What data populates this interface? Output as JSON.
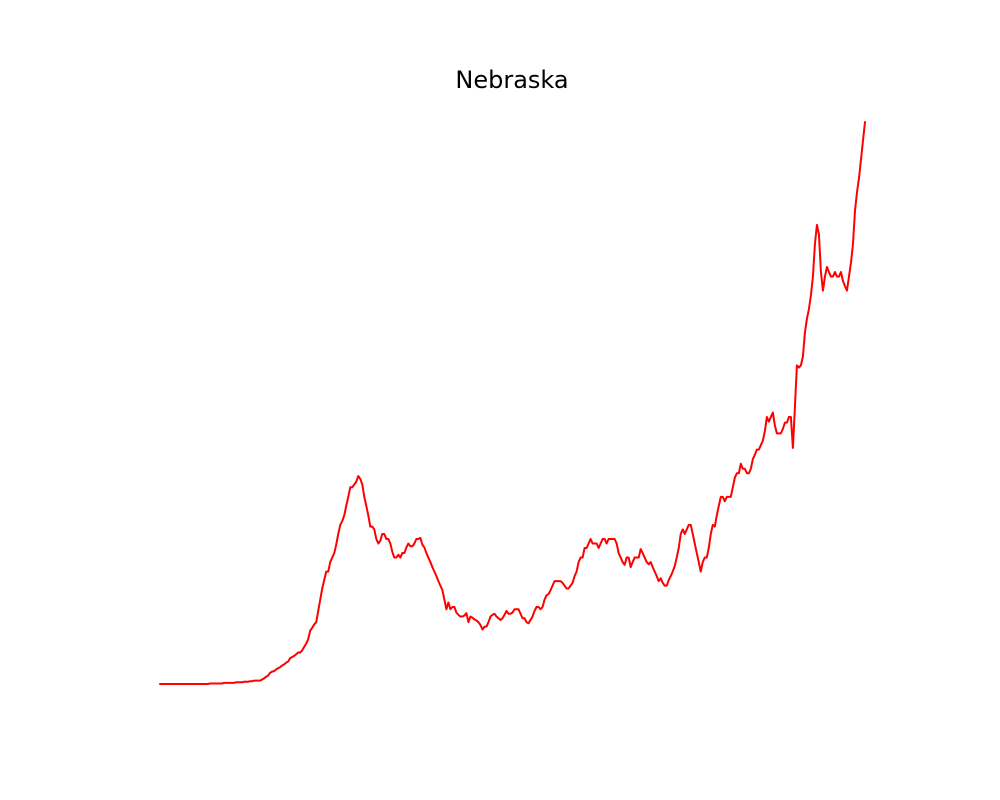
{
  "chart_data": {
    "type": "line",
    "title": "Nebraska",
    "xlabel": "",
    "ylabel": "",
    "axes_visible": false,
    "grid": false,
    "legend": "none",
    "ylim": [
      0,
      100
    ],
    "series": [
      {
        "color": "#ff0000",
        "values": [
          0,
          0,
          0,
          0,
          0,
          0,
          0,
          0,
          0,
          0,
          0,
          0,
          0,
          0,
          0,
          0,
          0,
          0,
          0,
          0,
          0,
          0,
          0,
          0,
          0,
          0.1,
          0.1,
          0.1,
          0.1,
          0.1,
          0.1,
          0.1,
          0.2,
          0.2,
          0.2,
          0.2,
          0.2,
          0.2,
          0.3,
          0.3,
          0.3,
          0.3,
          0.4,
          0.4,
          0.4,
          0.5,
          0.5,
          0.6,
          0.6,
          0.6,
          0.6,
          0.8,
          1.0,
          1.3,
          1.5,
          2.0,
          2.2,
          2.3,
          2.6,
          2.8,
          3.0,
          3.3,
          3.5,
          3.8,
          4.0,
          4.6,
          4.8,
          5.0,
          5.3,
          5.6,
          5.6,
          6.0,
          6.6,
          7.2,
          8.0,
          9.5,
          10.0,
          10.6,
          11.0,
          13.0,
          15.0,
          17.0,
          18.5,
          20.0,
          20.0,
          21.7,
          22.5,
          23.3,
          24.8,
          26.7,
          28.3,
          29.0,
          30.0,
          31.7,
          33.3,
          35.0,
          35.0,
          35.5,
          36.0,
          37.0,
          36.5,
          35.5,
          33.3,
          31.7,
          30.0,
          28.0,
          28.0,
          27.5,
          25.8,
          25.0,
          25.5,
          26.7,
          26.7,
          25.8,
          25.8,
          25.0,
          23.5,
          22.5,
          22.5,
          23.0,
          22.5,
          23.3,
          23.3,
          24.3,
          25.0,
          24.5,
          24.5,
          25.0,
          25.8,
          25.8,
          26.0,
          24.8,
          24.3,
          23.3,
          22.5,
          21.7,
          20.8,
          20.0,
          19.2,
          18.3,
          17.5,
          16.7,
          15.0,
          13.3,
          14.5,
          13.3,
          13.7,
          13.7,
          12.7,
          12.3,
          12.0,
          12.0,
          12.2,
          12.6,
          11.0,
          12.0,
          11.8,
          11.5,
          11.3,
          11.0,
          10.5,
          9.7,
          10.2,
          10.2,
          11.0,
          12.0,
          12.3,
          12.5,
          12.0,
          11.7,
          11.4,
          11.7,
          12.3,
          13.0,
          12.5,
          12.5,
          12.7,
          13.3,
          13.3,
          13.3,
          12.5,
          11.7,
          11.7,
          11.0,
          10.8,
          11.4,
          12.0,
          13.0,
          13.7,
          13.7,
          13.3,
          13.7,
          15.0,
          15.8,
          16.0,
          16.7,
          17.5,
          18.3,
          18.3,
          18.3,
          18.3,
          18.0,
          17.5,
          17.0,
          17.0,
          17.5,
          18.0,
          19.2,
          20.0,
          21.7,
          22.5,
          22.5,
          24.2,
          24.2,
          25.0,
          25.8,
          25.0,
          25.0,
          25.0,
          24.2,
          25.0,
          25.8,
          25.8,
          25.0,
          25.8,
          25.8,
          25.8,
          25.8,
          25.0,
          23.3,
          22.5,
          21.7,
          21.2,
          22.5,
          22.5,
          20.8,
          21.7,
          22.5,
          22.5,
          22.5,
          24.0,
          23.3,
          22.5,
          21.7,
          21.3,
          21.7,
          20.8,
          20.0,
          19.2,
          18.3,
          18.8,
          18.0,
          17.5,
          17.5,
          18.5,
          19.2,
          20.0,
          21.0,
          22.5,
          24.2,
          26.7,
          27.5,
          26.7,
          27.5,
          28.3,
          28.3,
          26.7,
          25.0,
          23.3,
          21.7,
          20.0,
          21.7,
          22.5,
          22.5,
          24.2,
          26.7,
          28.3,
          28.0,
          30.0,
          31.7,
          33.3,
          33.3,
          32.5,
          33.3,
          33.3,
          33.3,
          35.0,
          36.7,
          37.5,
          37.5,
          39.2,
          38.3,
          38.3,
          37.5,
          37.5,
          38.3,
          40.0,
          40.8,
          41.7,
          41.7,
          42.5,
          43.3,
          45.0,
          47.5,
          46.7,
          47.5,
          48.3,
          46.0,
          44.6,
          44.6,
          44.6,
          45.4,
          46.5,
          46.5,
          47.5,
          47.5,
          42.0,
          49.2,
          56.7,
          56.3,
          56.7,
          58.3,
          62.5,
          65.0,
          66.7,
          69.2,
          72.5,
          78.3,
          81.7,
          80.0,
          73.3,
          70.0,
          72.5,
          74.2,
          73.3,
          72.5,
          72.5,
          73.3,
          72.5,
          72.5,
          73.3,
          71.7,
          70.8,
          70.0,
          72.5,
          75.0,
          78.3,
          84.2,
          87.5,
          90.0,
          93.3,
          96.7,
          100
        ]
      }
    ]
  }
}
